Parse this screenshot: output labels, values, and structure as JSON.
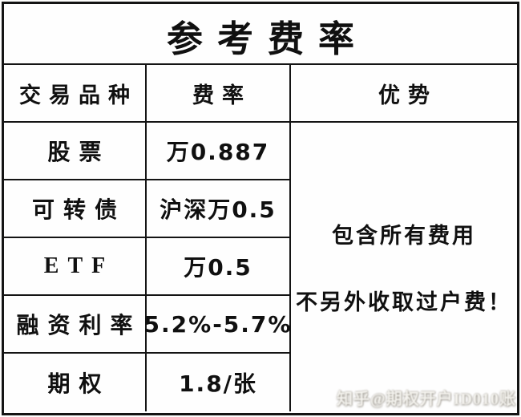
{
  "title": "参考费率",
  "table": {
    "headers": [
      "交易品种",
      "费率",
      "优势"
    ],
    "rows": [
      {
        "product": "股票",
        "rate": "万0.887"
      },
      {
        "product": "可转债",
        "rate": "沪深万0.5"
      },
      {
        "product": "ETF",
        "rate": "万0.5"
      },
      {
        "product": "融资利率",
        "rate": "5.2%-5.7%"
      },
      {
        "product": "期权",
        "rate": "1.8/张"
      }
    ],
    "advantage": {
      "line1": "包含所有费用",
      "line2": "不另外收取过户费！"
    }
  },
  "watermark": {
    "text": "知乎@期权开户ID010账"
  },
  "colors": {
    "border": "#141414",
    "text": "#101010",
    "background": "#fefefe"
  }
}
